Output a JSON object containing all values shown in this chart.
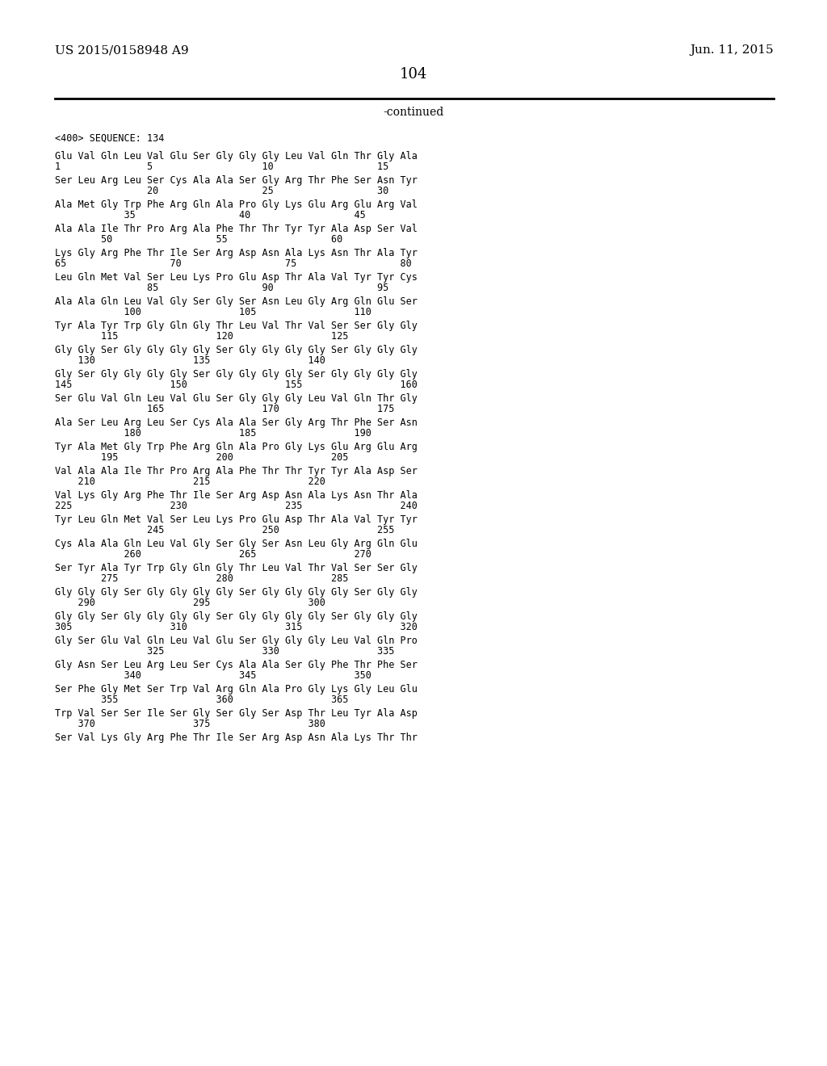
{
  "header_left": "US 2015/0158948 A9",
  "header_right": "Jun. 11, 2015",
  "page_number": "104",
  "continued_text": "-continued",
  "background_color": "#ffffff",
  "text_color": "#000000",
  "sequence_header": "<400> SEQUENCE: 134",
  "lines": [
    {
      "seq": "Glu Val Gln Leu Val Glu Ser Gly Gly Gly Leu Val Gln Thr Gly Ala",
      "nums": "1               5                   10                  15"
    },
    {
      "seq": "Ser Leu Arg Leu Ser Cys Ala Ala Ser Gly Arg Thr Phe Ser Asn Tyr",
      "nums": "                20                  25                  30"
    },
    {
      "seq": "Ala Met Gly Trp Phe Arg Gln Ala Pro Gly Lys Glu Arg Glu Arg Val",
      "nums": "            35                  40                  45"
    },
    {
      "seq": "Ala Ala Ile Thr Pro Arg Ala Phe Thr Thr Tyr Tyr Ala Asp Ser Val",
      "nums": "        50                  55                  60"
    },
    {
      "seq": "Lys Gly Arg Phe Thr Ile Ser Arg Asp Asn Ala Lys Asn Thr Ala Tyr",
      "nums": "65                  70                  75                  80"
    },
    {
      "seq": "Leu Gln Met Val Ser Leu Lys Pro Glu Asp Thr Ala Val Tyr Tyr Cys",
      "nums": "                85                  90                  95"
    },
    {
      "seq": "Ala Ala Gln Leu Val Gly Ser Gly Ser Asn Leu Gly Arg Gln Glu Ser",
      "nums": "            100                 105                 110"
    },
    {
      "seq": "Tyr Ala Tyr Trp Gly Gln Gly Thr Leu Val Thr Val Ser Ser Gly Gly",
      "nums": "        115                 120                 125"
    },
    {
      "seq": "Gly Gly Ser Gly Gly Gly Gly Ser Gly Gly Gly Gly Ser Gly Gly Gly",
      "nums": "    130                 135                 140"
    },
    {
      "seq": "Gly Ser Gly Gly Gly Gly Ser Gly Gly Gly Gly Ser Gly Gly Gly Gly",
      "nums": "145                 150                 155                 160"
    },
    {
      "seq": "Ser Glu Val Gln Leu Val Glu Ser Gly Gly Gly Leu Val Gln Thr Gly",
      "nums": "                165                 170                 175"
    },
    {
      "seq": "Ala Ser Leu Arg Leu Ser Cys Ala Ala Ser Gly Arg Thr Phe Ser Asn",
      "nums": "            180                 185                 190"
    },
    {
      "seq": "Tyr Ala Met Gly Trp Phe Arg Gln Ala Pro Gly Lys Glu Arg Glu Arg",
      "nums": "        195                 200                 205"
    },
    {
      "seq": "Val Ala Ala Ile Thr Pro Arg Ala Phe Thr Thr Tyr Tyr Ala Asp Ser",
      "nums": "    210                 215                 220"
    },
    {
      "seq": "Val Lys Gly Arg Phe Thr Ile Ser Arg Asp Asn Ala Lys Asn Thr Ala",
      "nums": "225                 230                 235                 240"
    },
    {
      "seq": "Tyr Leu Gln Met Val Ser Leu Lys Pro Glu Asp Thr Ala Val Tyr Tyr",
      "nums": "                245                 250                 255"
    },
    {
      "seq": "Cys Ala Ala Gln Leu Val Gly Ser Gly Ser Asn Leu Gly Arg Gln Glu",
      "nums": "            260                 265                 270"
    },
    {
      "seq": "Ser Tyr Ala Tyr Trp Gly Gln Gly Thr Leu Val Thr Val Ser Ser Gly",
      "nums": "        275                 280                 285"
    },
    {
      "seq": "Gly Gly Gly Ser Gly Gly Gly Gly Ser Gly Gly Gly Gly Ser Gly Gly",
      "nums": "    290                 295                 300"
    },
    {
      "seq": "Gly Gly Ser Gly Gly Gly Gly Ser Gly Gly Gly Gly Ser Gly Gly Gly",
      "nums": "305                 310                 315                 320"
    },
    {
      "seq": "Gly Ser Glu Val Gln Leu Val Glu Ser Gly Gly Gly Leu Val Gln Pro",
      "nums": "                325                 330                 335"
    },
    {
      "seq": "Gly Asn Ser Leu Arg Leu Ser Cys Ala Ala Ser Gly Phe Thr Phe Ser",
      "nums": "            340                 345                 350"
    },
    {
      "seq": "Ser Phe Gly Met Ser Trp Val Arg Gln Ala Pro Gly Lys Gly Leu Glu",
      "nums": "        355                 360                 365"
    },
    {
      "seq": "Trp Val Ser Ser Ile Ser Gly Ser Gly Ser Asp Thr Leu Tyr Ala Asp",
      "nums": "    370                 375                 380"
    },
    {
      "seq": "Ser Val Lys Gly Arg Phe Thr Ile Ser Arg Asp Asn Ala Lys Thr Thr",
      "nums": ""
    }
  ]
}
